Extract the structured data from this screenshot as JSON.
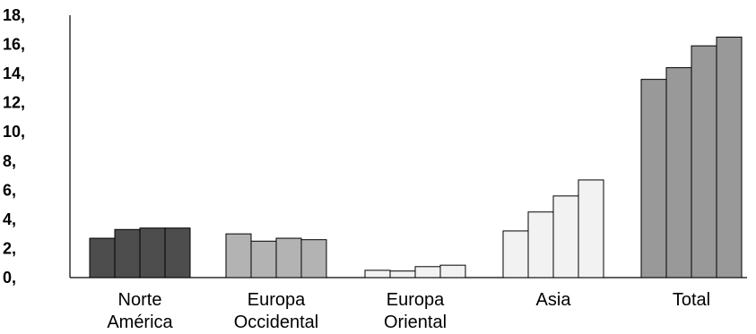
{
  "chart_data": {
    "type": "bar",
    "title": "",
    "xlabel": "",
    "ylabel": "",
    "ylim": [
      0,
      18
    ],
    "grid": false,
    "legend": "none",
    "y_ticks": [
      {
        "value": 0,
        "label": "0,"
      },
      {
        "value": 2,
        "label": "2,"
      },
      {
        "value": 4,
        "label": "4,"
      },
      {
        "value": 6,
        "label": "6,"
      },
      {
        "value": 8,
        "label": "8,"
      },
      {
        "value": 10,
        "label": "10,"
      },
      {
        "value": 12,
        "label": "12,"
      },
      {
        "value": 14,
        "label": "14,"
      },
      {
        "value": 16,
        "label": "16,"
      },
      {
        "value": 18,
        "label": "18,"
      }
    ],
    "categories": [
      {
        "lines": [
          "Norte",
          "América"
        ],
        "values": [
          2.7,
          3.3,
          3.4,
          3.4
        ],
        "color": "#4d4d4d"
      },
      {
        "lines": [
          "Europa",
          "Occidental"
        ],
        "values": [
          3.0,
          2.5,
          2.7,
          2.6
        ],
        "color": "#b3b3b3"
      },
      {
        "lines": [
          "Europa",
          "Oriental"
        ],
        "values": [
          0.5,
          0.45,
          0.75,
          0.85
        ],
        "color": "#f2f2f2"
      },
      {
        "lines": [
          "Asia"
        ],
        "values": [
          3.2,
          4.5,
          5.6,
          6.7
        ],
        "color": "#f2f2f2"
      },
      {
        "lines": [
          "Total"
        ],
        "values": [
          13.6,
          14.4,
          15.9,
          16.5
        ],
        "color": "#999999"
      }
    ]
  }
}
